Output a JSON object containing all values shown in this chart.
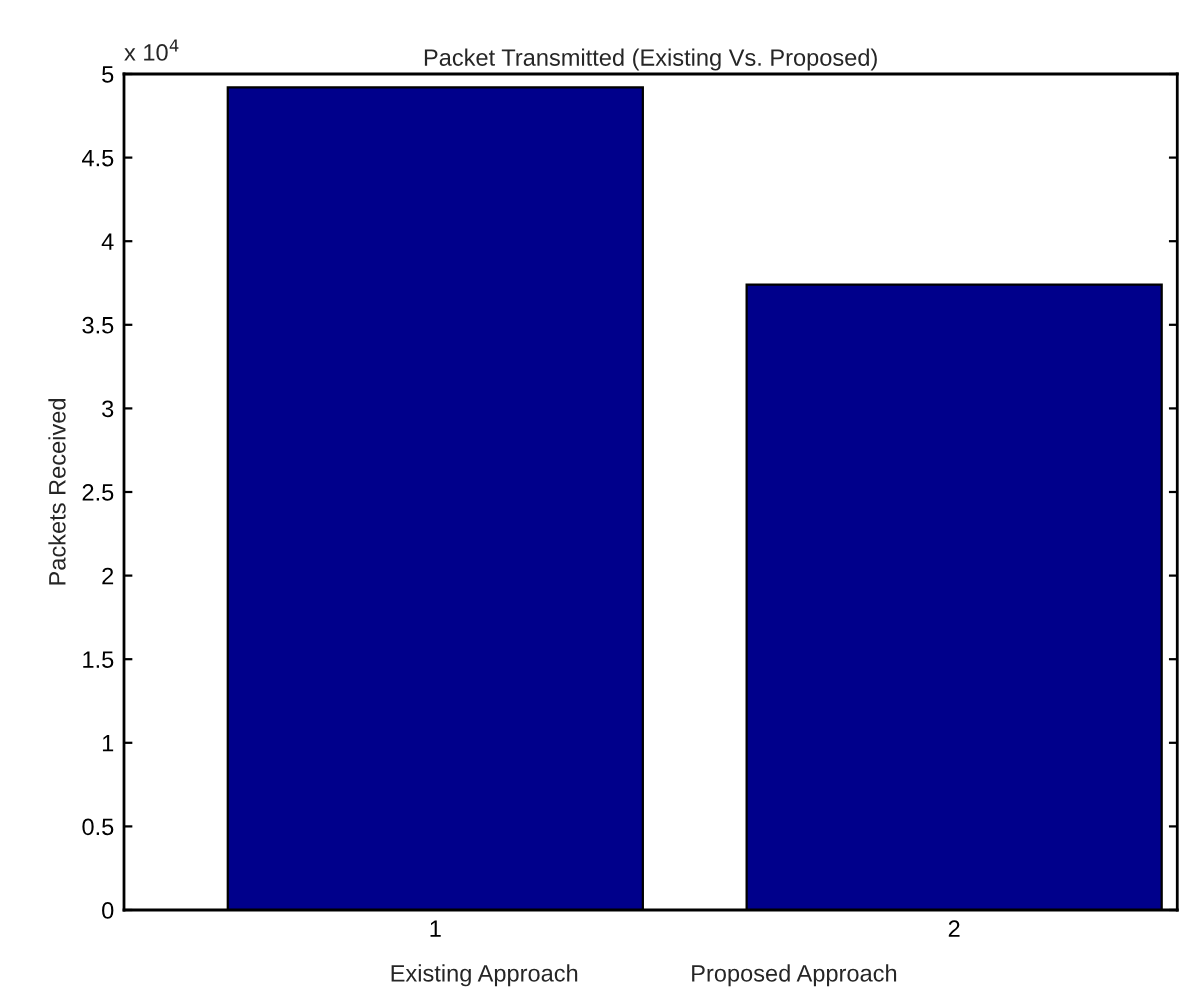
{
  "chart_data": {
    "type": "bar",
    "title": "Packet Transmitted (Existing Vs. Proposed)",
    "ylabel": "Packets Received",
    "xlabel": "Existing Approach                 Proposed Approach",
    "categories": [
      "1",
      "2"
    ],
    "values": [
      4.92,
      3.74
    ],
    "color": "#00008b",
    "ylim": [
      0,
      5
    ],
    "yticks": [
      0,
      0.5,
      1,
      1.5,
      2,
      2.5,
      3,
      3.5,
      4,
      4.5,
      5
    ],
    "annotations": [
      "x 10$^{4}$"
    ],
    "grid": false,
    "legend": false
  }
}
